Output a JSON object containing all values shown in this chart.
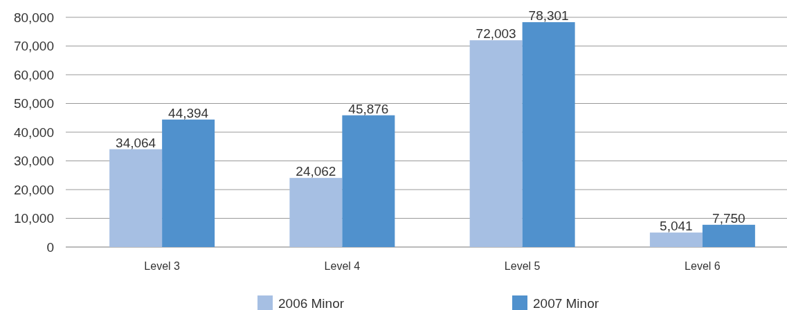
{
  "chart_data": {
    "type": "bar",
    "categories": [
      "Level 3",
      "Level 4",
      "Level 5",
      "Level 6"
    ],
    "series": [
      {
        "name": "2006 Minor",
        "color": "#a6bfe3",
        "values": [
          34064,
          24062,
          72003,
          5041
        ],
        "value_labels": [
          "34,064",
          "24,062",
          "72,003",
          "5,041"
        ]
      },
      {
        "name": "2007 Minor",
        "color": "#5091cd",
        "values": [
          44394,
          45876,
          78301,
          7750
        ],
        "value_labels": [
          "44,394",
          "45,876",
          "78,301",
          "7,750"
        ]
      }
    ],
    "ylim": [
      0,
      80000
    ],
    "yticks": [
      {
        "value": 0,
        "label": "0"
      },
      {
        "value": 10000,
        "label": "10,000"
      },
      {
        "value": 20000,
        "label": "20,000"
      },
      {
        "value": 30000,
        "label": "30,000"
      },
      {
        "value": 40000,
        "label": "40,000"
      },
      {
        "value": 50000,
        "label": "50,000"
      },
      {
        "value": 60000,
        "label": "60,000"
      },
      {
        "value": 70000,
        "label": "70,000"
      },
      {
        "value": 80000,
        "label": "80,000"
      }
    ],
    "grid": "y",
    "legend": "bottom"
  }
}
